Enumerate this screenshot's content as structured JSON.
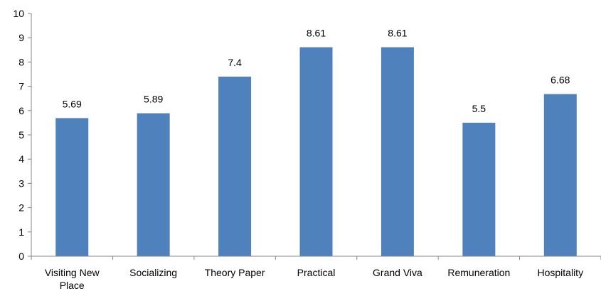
{
  "chart_data": {
    "type": "bar",
    "categories": [
      "Visiting New Place",
      "Socializing",
      "Theory Paper",
      "Practical",
      "Grand Viva",
      "Remuneration",
      "Hospitality"
    ],
    "values": [
      5.69,
      5.89,
      7.4,
      8.61,
      8.61,
      5.5,
      6.68
    ],
    "data_labels": [
      "5.69",
      "5.89",
      "7.4",
      "8.61",
      "8.61",
      "5.5",
      "6.68"
    ],
    "yticks": [
      "0",
      "1",
      "2",
      "3",
      "4",
      "5",
      "6",
      "7",
      "8",
      "9",
      "10"
    ],
    "ylim": [
      0,
      10
    ],
    "grid": false,
    "legend": "none",
    "bar_color": "#4F81BD",
    "axis_color": "#868686"
  }
}
